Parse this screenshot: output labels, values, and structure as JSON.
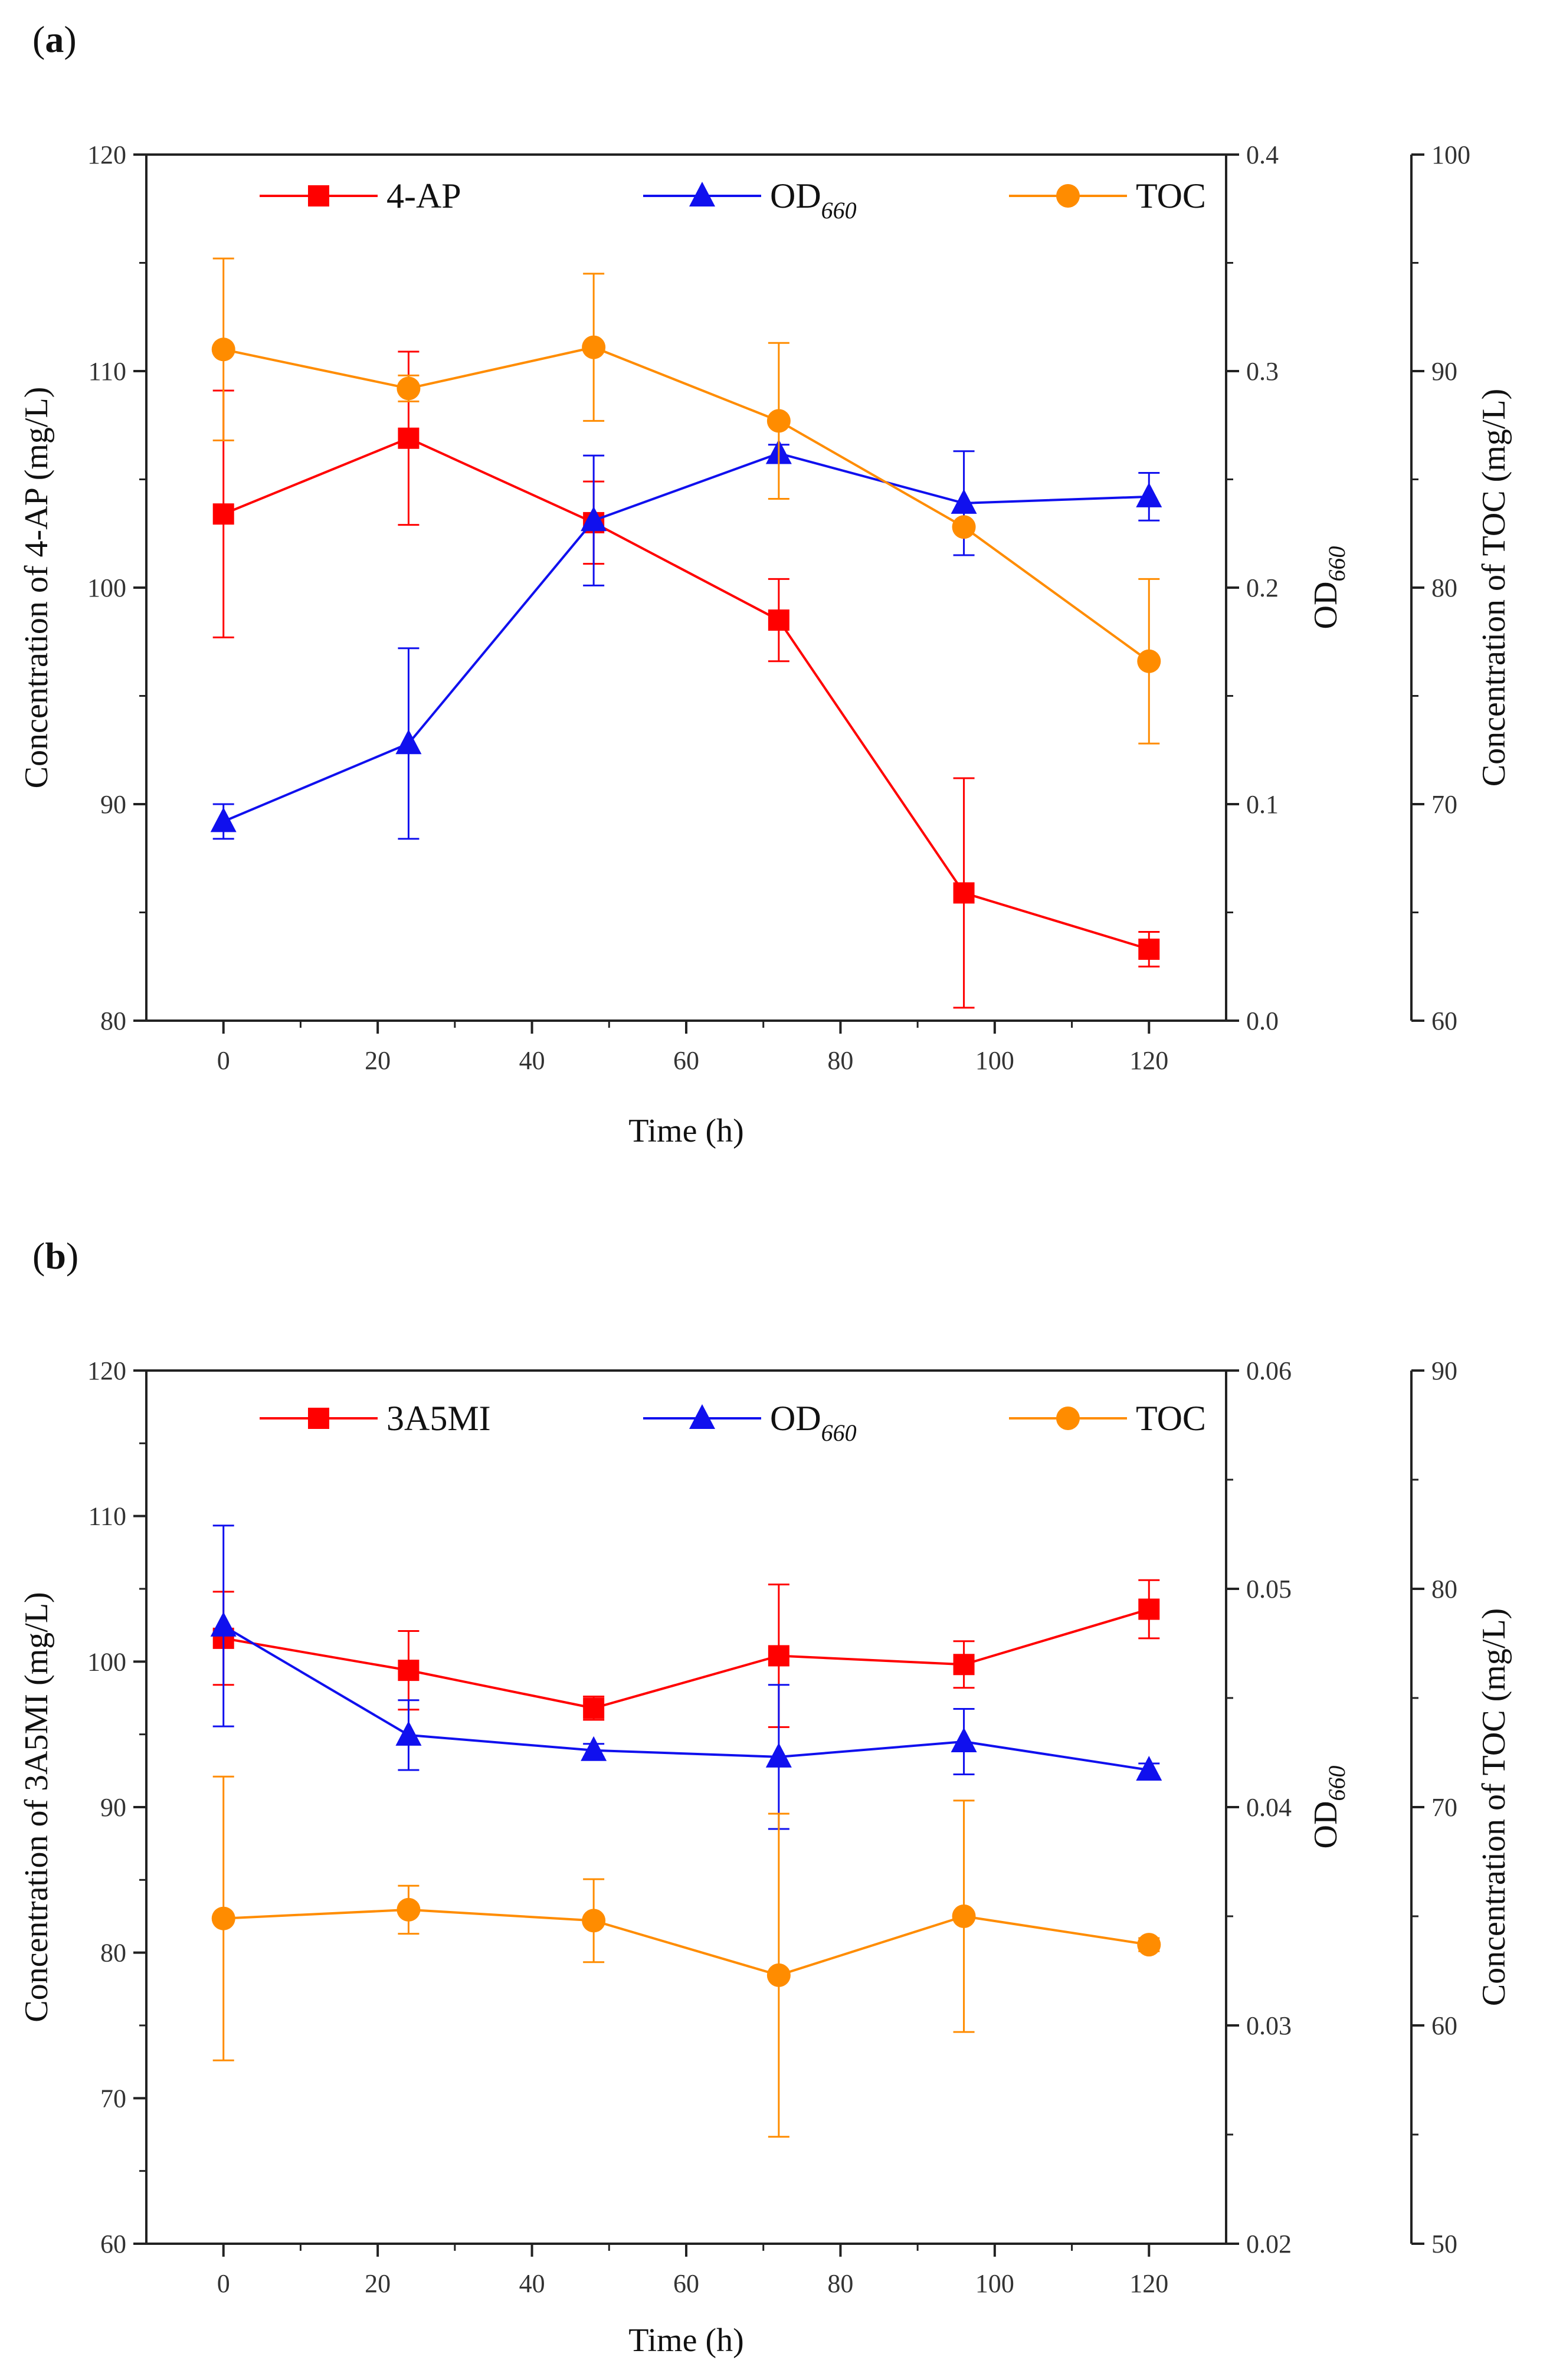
{
  "chart_data": [
    {
      "panel_label": "(a)",
      "label_text": {
        "open": "(",
        "letter": "a",
        "close": ")"
      },
      "type": "line",
      "x": [
        0,
        24,
        48,
        72,
        96,
        120
      ],
      "xlabel": "Time (h)",
      "xlim": [
        -10,
        130
      ],
      "xticks": [
        0,
        20,
        40,
        60,
        80,
        100,
        120
      ],
      "y_axes": {
        "left": {
          "label": "Concentration of 4-AP (mg/L)",
          "lim": [
            80,
            120
          ],
          "ticks": [
            80,
            90,
            100,
            110,
            120
          ],
          "tick_labels": [
            "80",
            "90",
            "100",
            "110",
            "120"
          ]
        },
        "right": {
          "label_main": "OD",
          "label_sub": "660",
          "lim": [
            0,
            0.4
          ],
          "ticks": [
            0,
            0.1,
            0.2,
            0.3,
            0.4
          ],
          "tick_labels": [
            "0.0",
            "0.1",
            "0.2",
            "0.3",
            "0.4"
          ]
        },
        "outer": {
          "label": "Concentration of TOC (mg/L)",
          "lim": [
            60,
            100
          ],
          "ticks": [
            60,
            70,
            80,
            90,
            100
          ],
          "tick_labels": [
            "60",
            "70",
            "80",
            "90",
            "100"
          ]
        }
      },
      "series": [
        {
          "name": "4-AP",
          "name_sub": "",
          "axis": "left",
          "color": "#ff0000",
          "marker": "square",
          "values": [
            103.4,
            106.9,
            103.0,
            98.5,
            85.9,
            83.3
          ],
          "errors": [
            5.7,
            4.0,
            1.9,
            1.9,
            5.3,
            0.8
          ]
        },
        {
          "name": "OD",
          "name_sub": "660",
          "axis": "right",
          "color": "#1010ee",
          "marker": "triangle",
          "values": [
            0.092,
            0.128,
            0.231,
            0.262,
            0.239,
            0.242
          ],
          "errors": [
            0.008,
            0.044,
            0.03,
            0.004,
            0.024,
            0.011
          ]
        },
        {
          "name": "TOC",
          "name_sub": "",
          "axis": "outer",
          "color": "#ff8c00",
          "marker": "circle",
          "values": [
            91.0,
            89.2,
            91.1,
            87.7,
            82.8,
            76.6
          ],
          "errors": [
            4.2,
            0.6,
            3.4,
            3.6,
            0.2,
            3.8
          ]
        }
      ]
    },
    {
      "panel_label": "(b)",
      "label_text": {
        "open": "(",
        "letter": "b",
        "close": ")"
      },
      "type": "line",
      "x": [
        0,
        24,
        48,
        72,
        96,
        120
      ],
      "xlabel": "Time (h)",
      "xlim": [
        -10,
        130
      ],
      "xticks": [
        0,
        20,
        40,
        60,
        80,
        100,
        120
      ],
      "y_axes": {
        "left": {
          "label": "Concentration of 3A5MI (mg/L)",
          "lim": [
            60,
            120
          ],
          "ticks": [
            60,
            70,
            80,
            90,
            100,
            110,
            120
          ],
          "tick_labels": [
            "60",
            "70",
            "80",
            "90",
            "100",
            "110",
            "120"
          ]
        },
        "right": {
          "label_main": "OD",
          "label_sub": "660",
          "lim": [
            0.02,
            0.06
          ],
          "ticks": [
            0.02,
            0.03,
            0.04,
            0.05,
            0.06
          ],
          "tick_labels": [
            "0.02",
            "0.03",
            "0.04",
            "0.05",
            "0.06"
          ]
        },
        "outer": {
          "label": "Concentration of TOC (mg/L)",
          "lim": [
            50,
            90
          ],
          "ticks": [
            50,
            60,
            70,
            80,
            90
          ],
          "tick_labels": [
            "50",
            "60",
            "70",
            "80",
            "90"
          ]
        }
      },
      "series": [
        {
          "name": "3A5MI",
          "name_sub": "",
          "axis": "left",
          "color": "#ff0000",
          "marker": "square",
          "values": [
            101.6,
            99.4,
            96.8,
            100.4,
            99.8,
            103.6
          ],
          "errors": [
            3.2,
            2.7,
            0.8,
            4.9,
            1.6,
            2.0
          ]
        },
        {
          "name": "OD",
          "name_sub": "660",
          "axis": "right",
          "color": "#1010ee",
          "marker": "triangle",
          "values": [
            0.0483,
            0.0433,
            0.0426,
            0.0423,
            0.043,
            0.0417
          ],
          "errors": [
            0.0046,
            0.0016,
            0.0003,
            0.0033,
            0.0015,
            0.0003
          ]
        },
        {
          "name": "TOC",
          "name_sub": "",
          "axis": "outer",
          "color": "#ff8c00",
          "marker": "circle",
          "values": [
            64.9,
            65.3,
            64.8,
            62.3,
            65.0,
            63.7
          ],
          "errors": [
            6.5,
            1.1,
            1.9,
            7.4,
            5.3,
            0.3
          ]
        }
      ]
    }
  ]
}
